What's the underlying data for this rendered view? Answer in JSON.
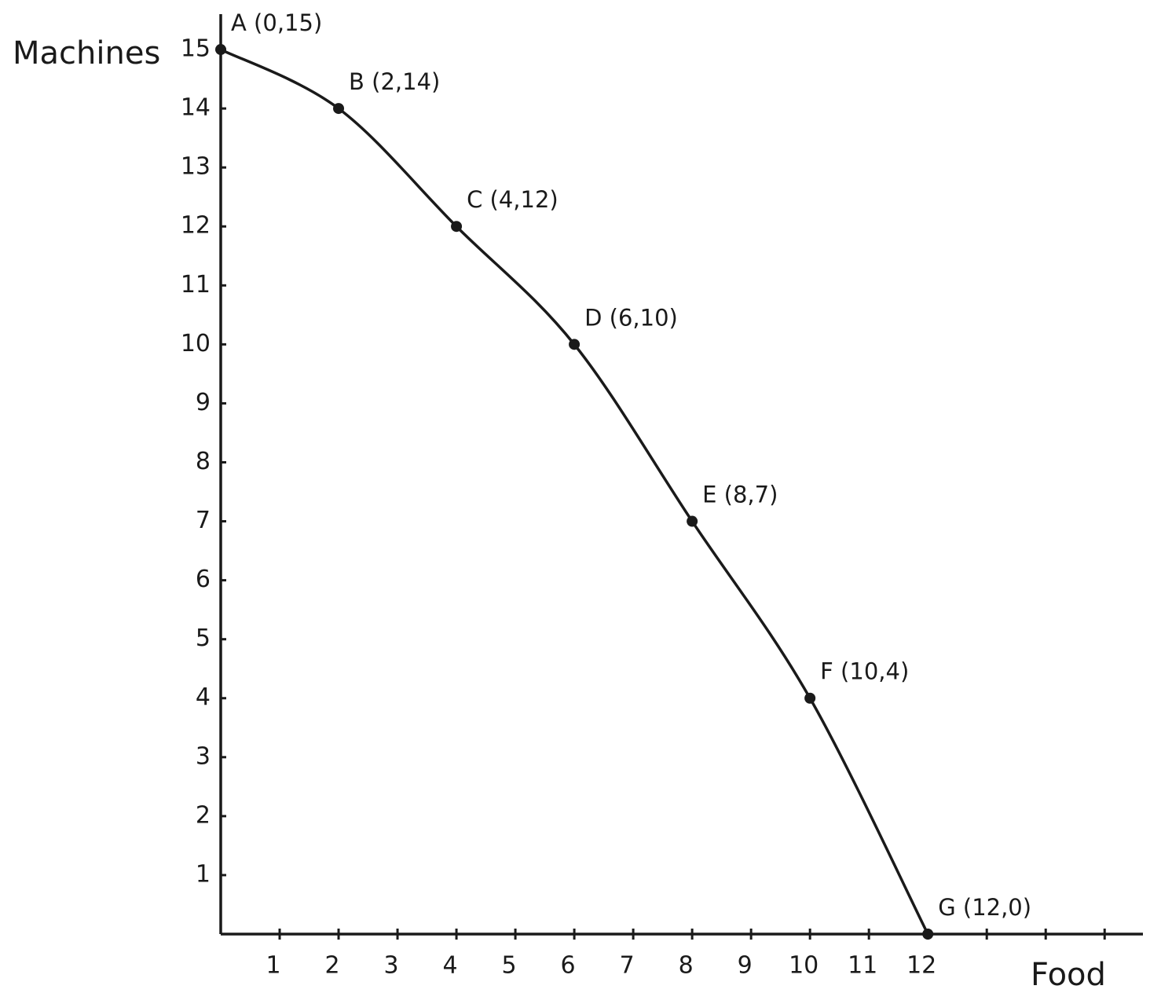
{
  "chart_data": {
    "type": "line",
    "x_label": "Food",
    "y_label": "Machines",
    "x": [
      0,
      2,
      4,
      6,
      8,
      10,
      12
    ],
    "series": [
      {
        "color": "#1a1a1a",
        "values": [
          15,
          14,
          12,
          10,
          7,
          4,
          0
        ],
        "point_labels": [
          "A (0,15)",
          "B (2,14)",
          "C (4,12)",
          "D (6,10)",
          "E (8,7)",
          "F (10,4)",
          "G (12,0)"
        ]
      }
    ],
    "xlim": [
      0,
      15.65
    ],
    "ylim": [
      0,
      15.6
    ],
    "xticks": [
      1,
      2,
      3,
      4,
      5,
      6,
      7,
      8,
      9,
      10,
      11,
      12
    ],
    "xtick_marks": [
      1,
      2,
      3,
      4,
      5,
      6,
      7,
      8,
      9,
      10,
      11,
      12,
      13,
      14,
      15
    ],
    "yticks": [
      1,
      2,
      3,
      4,
      5,
      6,
      7,
      8,
      9,
      10,
      11,
      12,
      13,
      14,
      15
    ]
  }
}
